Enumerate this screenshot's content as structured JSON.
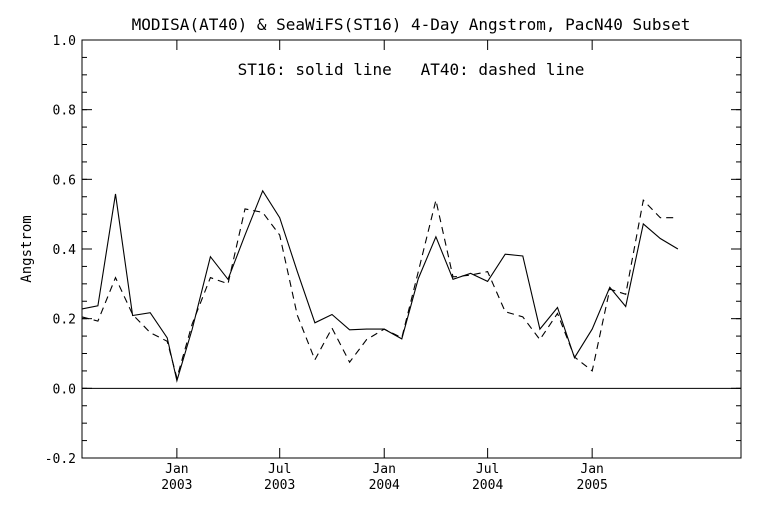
{
  "chart_data": {
    "type": "line",
    "title": "MODISA(AT40) & SeaWiFS(ST16) 4-Day Angstrom, PacN40 Subset",
    "annotation": "ST16: solid line   AT40: dashed line",
    "xlabel": "",
    "ylabel": "Angstrom",
    "ylim": [
      -0.2,
      1.0
    ],
    "xlim": [
      "2002-07-18",
      "2005-09-20"
    ],
    "y_ticks": [
      "-0.2",
      "0.0",
      "0.2",
      "0.4",
      "0.6",
      "0.8",
      "1.0"
    ],
    "x_ticks": [
      {
        "date": "2003-01-01",
        "month": "Jan",
        "year": "2003"
      },
      {
        "date": "2003-07-01",
        "month": "Jul",
        "year": "2003"
      },
      {
        "date": "2004-01-01",
        "month": "Jan",
        "year": "2004"
      },
      {
        "date": "2004-07-01",
        "month": "Jul",
        "year": "2004"
      },
      {
        "date": "2005-01-01",
        "month": "Jan",
        "year": "2005"
      }
    ],
    "reference_line": 0.0,
    "series": [
      {
        "name": "ST16",
        "style": "solid",
        "color": "#000000",
        "points": [
          [
            "2002-07-18",
            0.228
          ],
          [
            "2002-08-15",
            0.237
          ],
          [
            "2002-09-15",
            0.558
          ],
          [
            "2002-10-15",
            0.209
          ],
          [
            "2002-11-15",
            0.217
          ],
          [
            "2002-12-15",
            0.145
          ],
          [
            "2003-01-01",
            0.022
          ],
          [
            "2003-01-28",
            0.17
          ],
          [
            "2003-03-01",
            0.378
          ],
          [
            "2003-04-01",
            0.313
          ],
          [
            "2003-05-01",
            0.44
          ],
          [
            "2003-06-01",
            0.567
          ],
          [
            "2003-07-01",
            0.49
          ],
          [
            "2003-08-01",
            0.335
          ],
          [
            "2003-09-01",
            0.188
          ],
          [
            "2003-10-01",
            0.212
          ],
          [
            "2003-11-01",
            0.168
          ],
          [
            "2003-12-01",
            0.17
          ],
          [
            "2004-01-01",
            0.17
          ],
          [
            "2004-02-01",
            0.142
          ],
          [
            "2004-03-01",
            0.315
          ],
          [
            "2004-04-01",
            0.435
          ],
          [
            "2004-05-01",
            0.313
          ],
          [
            "2004-06-01",
            0.33
          ],
          [
            "2004-07-01",
            0.307
          ],
          [
            "2004-08-01",
            0.385
          ],
          [
            "2004-09-01",
            0.38
          ],
          [
            "2004-10-01",
            0.17
          ],
          [
            "2004-11-01",
            0.232
          ],
          [
            "2004-12-01",
            0.088
          ],
          [
            "2005-01-01",
            0.17
          ],
          [
            "2005-02-01",
            0.29
          ],
          [
            "2005-03-01",
            0.235
          ],
          [
            "2005-04-01",
            0.472
          ],
          [
            "2005-05-01",
            0.43
          ],
          [
            "2005-06-01",
            0.4
          ]
        ]
      },
      {
        "name": "AT40",
        "style": "dashed",
        "color": "#000000",
        "points": [
          [
            "2002-07-18",
            0.205
          ],
          [
            "2002-08-15",
            0.193
          ],
          [
            "2002-09-15",
            0.318
          ],
          [
            "2002-10-15",
            0.212
          ],
          [
            "2002-11-15",
            0.16
          ],
          [
            "2002-12-15",
            0.135
          ],
          [
            "2003-01-01",
            0.03
          ],
          [
            "2003-01-28",
            0.185
          ],
          [
            "2003-03-01",
            0.318
          ],
          [
            "2003-04-01",
            0.3
          ],
          [
            "2003-05-01",
            0.515
          ],
          [
            "2003-06-01",
            0.505
          ],
          [
            "2003-07-01",
            0.44
          ],
          [
            "2003-08-01",
            0.21
          ],
          [
            "2003-09-01",
            0.082
          ],
          [
            "2003-10-01",
            0.173
          ],
          [
            "2003-11-01",
            0.075
          ],
          [
            "2003-12-01",
            0.14
          ],
          [
            "2004-01-01",
            0.17
          ],
          [
            "2004-02-01",
            0.145
          ],
          [
            "2004-03-01",
            0.335
          ],
          [
            "2004-04-01",
            0.54
          ],
          [
            "2004-05-01",
            0.32
          ],
          [
            "2004-06-01",
            0.325
          ],
          [
            "2004-07-01",
            0.335
          ],
          [
            "2004-08-01",
            0.22
          ],
          [
            "2004-09-01",
            0.205
          ],
          [
            "2004-10-01",
            0.14
          ],
          [
            "2004-11-01",
            0.215
          ],
          [
            "2004-12-01",
            0.09
          ],
          [
            "2005-01-01",
            0.05
          ],
          [
            "2005-02-01",
            0.285
          ],
          [
            "2005-03-01",
            0.27
          ],
          [
            "2005-04-01",
            0.54
          ],
          [
            "2005-05-01",
            0.49
          ],
          [
            "2005-06-01",
            0.49
          ]
        ]
      }
    ]
  }
}
